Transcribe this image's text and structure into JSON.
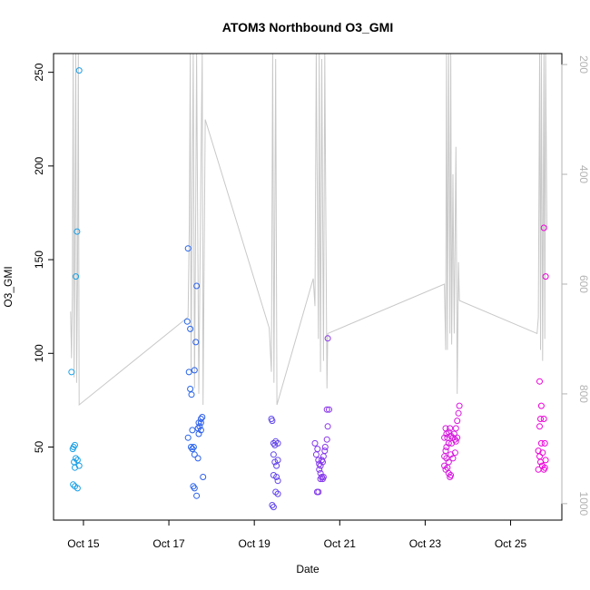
{
  "chart_data": {
    "type": "scatter",
    "title": "ATOM3 Northbound O3_GMI",
    "xlabel": "Date",
    "ylabel": "O3_GMI",
    "x_ticks": [
      {
        "day": 15,
        "label": "Oct 15"
      },
      {
        "day": 17,
        "label": "Oct 17"
      },
      {
        "day": 19,
        "label": "Oct 19"
      },
      {
        "day": 21,
        "label": "Oct 21"
      },
      {
        "day": 23,
        "label": "Oct 23"
      },
      {
        "day": 25,
        "label": "Oct 25"
      }
    ],
    "xlim": [
      14.3,
      26.2
    ],
    "ylim": [
      11,
      260
    ],
    "y_ticks": [
      50,
      100,
      150,
      200,
      250
    ],
    "y2_ticks": [
      200,
      400,
      600,
      800,
      1000
    ],
    "y2lim": [
      1030,
      180
    ],
    "colors": {
      "axis": "#000000",
      "right_axis": "#b3b3b3",
      "pressure_line": "#c8c8c8",
      "point_gradient": [
        "#1ba3e6",
        "#2563eb",
        "#7c3aed",
        "#d11fe0",
        "#f000d8"
      ]
    },
    "series": [
      {
        "points": [
          [
            14.72,
            90
          ],
          [
            14.75,
            49
          ],
          [
            14.77,
            50
          ],
          [
            14.8,
            51
          ],
          [
            14.78,
            42
          ],
          [
            14.82,
            44
          ],
          [
            14.86,
            43
          ],
          [
            14.9,
            40
          ],
          [
            14.8,
            39
          ],
          [
            14.76,
            30
          ],
          [
            14.8,
            29
          ],
          [
            14.86,
            28
          ],
          [
            14.82,
            141
          ],
          [
            14.85,
            165
          ],
          [
            14.9,
            251
          ],
          [
            17.45,
            156
          ],
          [
            17.43,
            117
          ],
          [
            17.5,
            113
          ],
          [
            17.47,
            90
          ],
          [
            17.5,
            81
          ],
          [
            17.53,
            78
          ],
          [
            17.55,
            59
          ],
          [
            17.45,
            55
          ],
          [
            17.52,
            50
          ],
          [
            17.55,
            49
          ],
          [
            17.58,
            50
          ],
          [
            17.6,
            46
          ],
          [
            17.57,
            29
          ],
          [
            17.6,
            28
          ],
          [
            17.65,
            24
          ],
          [
            17.65,
            136
          ],
          [
            17.63,
            106
          ],
          [
            17.6,
            91
          ],
          [
            17.7,
            63
          ],
          [
            17.75,
            65
          ],
          [
            17.78,
            66
          ],
          [
            17.72,
            61
          ],
          [
            17.75,
            63
          ],
          [
            17.68,
            60
          ],
          [
            17.7,
            57
          ],
          [
            17.75,
            59
          ],
          [
            17.68,
            44
          ],
          [
            17.8,
            34
          ],
          [
            19.4,
            65
          ],
          [
            19.42,
            64
          ],
          [
            19.45,
            52
          ],
          [
            19.48,
            51
          ],
          [
            19.5,
            53
          ],
          [
            19.55,
            52
          ],
          [
            19.45,
            46
          ],
          [
            19.48,
            42
          ],
          [
            19.52,
            40
          ],
          [
            19.55,
            43
          ],
          [
            19.45,
            35
          ],
          [
            19.52,
            34
          ],
          [
            19.55,
            32
          ],
          [
            19.5,
            26
          ],
          [
            19.55,
            25
          ],
          [
            19.42,
            19
          ],
          [
            19.45,
            18
          ],
          [
            20.42,
            52
          ],
          [
            20.45,
            46
          ],
          [
            20.48,
            49
          ],
          [
            20.5,
            43
          ],
          [
            20.52,
            41
          ],
          [
            20.55,
            40
          ],
          [
            20.58,
            43
          ],
          [
            20.6,
            42
          ],
          [
            20.52,
            38
          ],
          [
            20.55,
            36
          ],
          [
            20.58,
            34
          ],
          [
            20.6,
            33
          ],
          [
            20.62,
            34
          ],
          [
            20.55,
            33
          ],
          [
            20.47,
            26
          ],
          [
            20.5,
            26
          ],
          [
            20.62,
            45
          ],
          [
            20.65,
            48
          ],
          [
            20.66,
            50
          ],
          [
            20.7,
            54
          ],
          [
            20.72,
            61
          ],
          [
            20.7,
            70
          ],
          [
            20.75,
            70
          ],
          [
            20.72,
            108
          ],
          [
            23.45,
            55
          ],
          [
            23.48,
            60
          ],
          [
            23.5,
            57
          ],
          [
            23.52,
            55
          ],
          [
            23.55,
            58
          ],
          [
            23.58,
            60
          ],
          [
            23.6,
            56
          ],
          [
            23.55,
            52
          ],
          [
            23.5,
            50
          ],
          [
            23.48,
            48
          ],
          [
            23.45,
            45
          ],
          [
            23.5,
            44
          ],
          [
            23.55,
            42
          ],
          [
            23.6,
            46
          ],
          [
            23.62,
            52
          ],
          [
            23.65,
            55
          ],
          [
            23.68,
            57
          ],
          [
            23.7,
            54
          ],
          [
            23.72,
            53
          ],
          [
            23.75,
            55
          ],
          [
            23.72,
            60
          ],
          [
            23.75,
            64
          ],
          [
            23.78,
            68
          ],
          [
            23.8,
            72
          ],
          [
            23.45,
            40
          ],
          [
            23.48,
            38
          ],
          [
            23.52,
            39
          ],
          [
            23.55,
            36
          ],
          [
            23.58,
            34
          ],
          [
            23.6,
            35
          ],
          [
            23.65,
            44
          ],
          [
            23.7,
            47
          ],
          [
            25.68,
            85
          ],
          [
            25.72,
            72
          ],
          [
            25.7,
            65
          ],
          [
            25.68,
            61
          ],
          [
            25.78,
            65
          ],
          [
            25.65,
            48
          ],
          [
            25.68,
            45
          ],
          [
            25.72,
            52
          ],
          [
            25.75,
            47
          ],
          [
            25.7,
            42
          ],
          [
            25.74,
            40
          ],
          [
            25.78,
            38
          ],
          [
            25.8,
            39
          ],
          [
            25.82,
            43
          ],
          [
            25.65,
            38
          ],
          [
            25.8,
            52
          ],
          [
            25.78,
            167
          ],
          [
            25.82,
            141
          ]
        ]
      }
    ],
    "pressure_trace": [
      [
        14.7,
        650
      ],
      [
        14.72,
        735
      ],
      [
        14.74,
        615
      ],
      [
        14.76,
        180
      ],
      [
        14.78,
        770
      ],
      [
        14.8,
        500
      ],
      [
        14.82,
        180
      ],
      [
        14.84,
        780
      ],
      [
        14.86,
        600
      ],
      [
        14.88,
        180
      ],
      [
        14.9,
        820
      ],
      [
        17.45,
        660
      ],
      [
        17.48,
        490
      ],
      [
        17.5,
        180
      ],
      [
        17.52,
        760
      ],
      [
        17.55,
        400
      ],
      [
        17.57,
        180
      ],
      [
        17.6,
        790
      ],
      [
        17.63,
        450
      ],
      [
        17.65,
        180
      ],
      [
        17.7,
        800
      ],
      [
        17.75,
        380
      ],
      [
        17.78,
        180
      ],
      [
        17.8,
        820
      ],
      [
        17.85,
        300
      ],
      [
        19.35,
        680
      ],
      [
        19.4,
        760
      ],
      [
        19.43,
        180
      ],
      [
        19.46,
        780
      ],
      [
        19.5,
        190
      ],
      [
        19.53,
        820
      ],
      [
        20.38,
        590
      ],
      [
        20.42,
        640
      ],
      [
        20.45,
        180
      ],
      [
        20.5,
        700
      ],
      [
        20.52,
        180
      ],
      [
        20.55,
        760
      ],
      [
        20.58,
        190
      ],
      [
        20.62,
        740
      ],
      [
        20.65,
        180
      ],
      [
        20.7,
        790
      ],
      [
        20.72,
        690
      ],
      [
        23.45,
        600
      ],
      [
        23.48,
        720
      ],
      [
        23.5,
        180
      ],
      [
        23.52,
        720
      ],
      [
        23.55,
        180
      ],
      [
        23.58,
        690
      ],
      [
        23.6,
        180
      ],
      [
        23.62,
        710
      ],
      [
        23.65,
        400
      ],
      [
        23.68,
        690
      ],
      [
        23.72,
        350
      ],
      [
        23.75,
        800
      ],
      [
        23.78,
        560
      ],
      [
        23.8,
        630
      ],
      [
        25.62,
        690
      ],
      [
        25.65,
        660
      ],
      [
        25.68,
        180
      ],
      [
        25.7,
        720
      ],
      [
        25.72,
        180
      ],
      [
        25.75,
        740
      ],
      [
        25.78,
        180
      ],
      [
        25.8,
        700
      ],
      [
        25.82,
        180
      ],
      [
        25.85,
        500
      ]
    ]
  }
}
